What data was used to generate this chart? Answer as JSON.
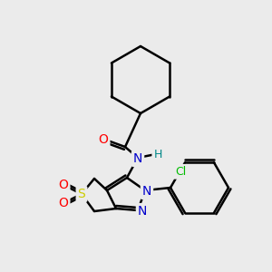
{
  "bg_color": "#ebebeb",
  "bond_color": "#000000",
  "bond_width": 1.8,
  "atom_colors": {
    "O": "#ff0000",
    "N": "#0000cc",
    "S": "#cccc00",
    "Cl": "#00bb00",
    "H": "#008888",
    "C": "#000000"
  },
  "font_size": 10
}
